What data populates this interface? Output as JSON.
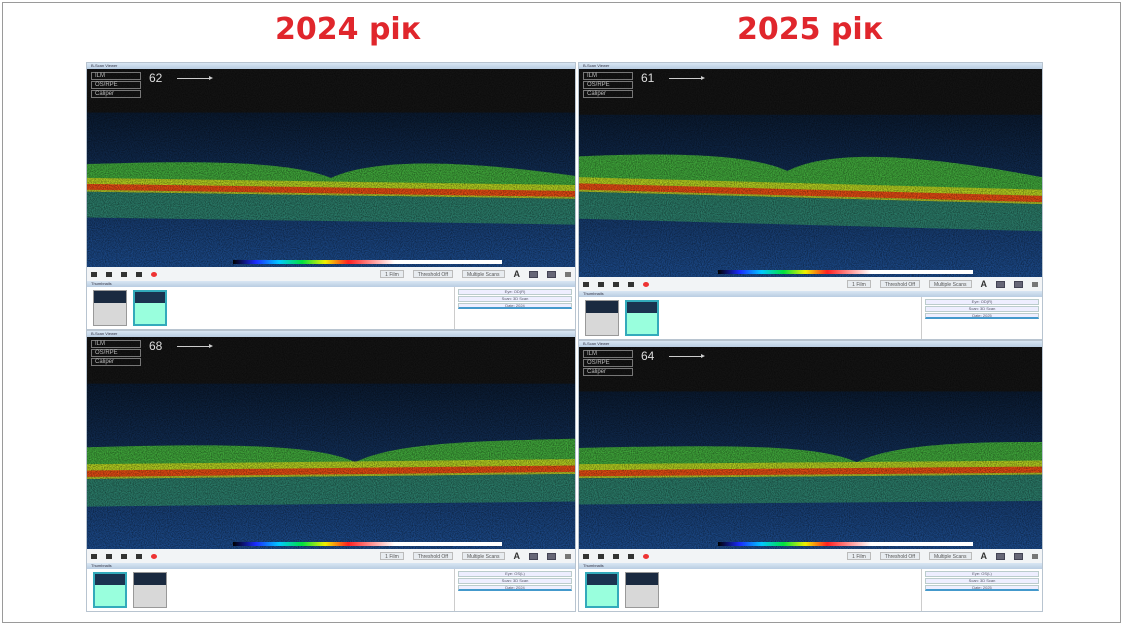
{
  "headings": {
    "left": "2024 рік",
    "right": "2025 рік"
  },
  "colors": {
    "heading": "#e0262c"
  },
  "panels": [
    {
      "id": "2024-top",
      "title": "B-Scan Viewer",
      "scan_number": "62",
      "layers": [
        "ILM",
        "OS/RPE",
        "Caliper"
      ],
      "toolbar": {
        "film": "1 Film",
        "threshold": "Threshold Off",
        "mode": "Multiple Scans"
      },
      "thumb_title": "Thumbnails",
      "thumb_count": 2,
      "selected_thumb": 1,
      "info": [
        "Eye: OD(R)",
        "Scan: 3D Scan",
        "Date: 2024"
      ]
    },
    {
      "id": "2025-top",
      "title": "B-Scan Viewer",
      "scan_number": "61",
      "layers": [
        "ILM",
        "OS/RPE",
        "Caliper"
      ],
      "toolbar": {
        "film": "1 Film",
        "threshold": "Threshold Off",
        "mode": "Multiple Scans"
      },
      "thumb_title": "Thumbnails",
      "thumb_count": 2,
      "selected_thumb": 1,
      "info": [
        "Eye: OD(R)",
        "Scan: 3D Scan",
        "Date: 2025"
      ]
    },
    {
      "id": "2024-bottom",
      "title": "B-Scan Viewer",
      "scan_number": "68",
      "layers": [
        "ILM",
        "OS/RPE",
        "Caliper"
      ],
      "toolbar": {
        "film": "1 Film",
        "threshold": "Threshold Off",
        "mode": "Multiple Scans"
      },
      "thumb_title": "Thumbnails",
      "thumb_count": 2,
      "selected_thumb": 0,
      "info": [
        "Eye: OS(L)",
        "Scan: 3D Scan",
        "Date: 2024"
      ]
    },
    {
      "id": "2025-bottom",
      "title": "B-Scan Viewer",
      "scan_number": "64",
      "layers": [
        "ILM",
        "OS/RPE",
        "Caliper"
      ],
      "toolbar": {
        "film": "1 Film",
        "threshold": "Threshold Off",
        "mode": "Multiple Scans"
      },
      "thumb_title": "Thumbnails",
      "thumb_count": 2,
      "selected_thumb": 0,
      "info": [
        "Eye: OS(L)",
        "Scan: 3D Scan",
        "Date: 2025"
      ]
    }
  ]
}
